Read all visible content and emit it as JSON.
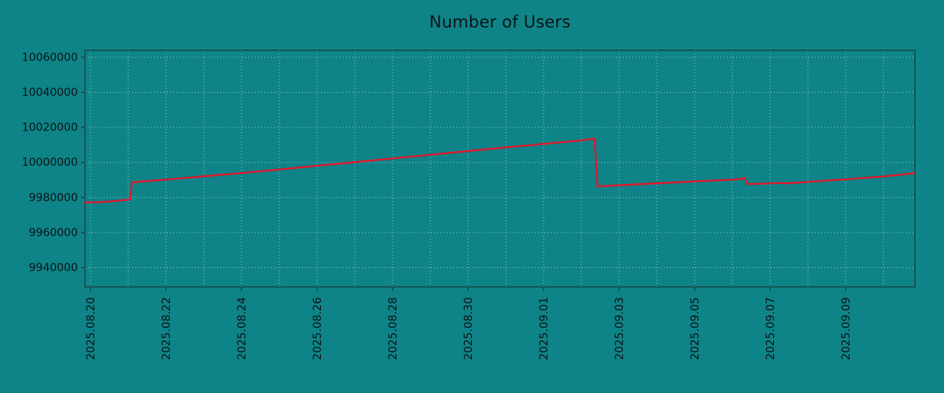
{
  "page": {
    "background": "#0f8488",
    "title_color": "#0a1414",
    "text_color": "#0a1414",
    "frame_color": "#15393b",
    "grid_color": "rgba(255,255,255,0.55)"
  },
  "chart_data": {
    "type": "line",
    "title": "Number of Users",
    "xlabel": "",
    "ylabel": "",
    "legend": "none",
    "grid": "dotted, vertical line per day, horizontal line per 20000 users",
    "ylim": [
      9929000,
      10064000
    ],
    "y_ticks": [
      9940000,
      9960000,
      9980000,
      10000000,
      10020000,
      10040000,
      10060000
    ],
    "x_axis_unit": "days since 2025.08.20",
    "x_range_days": [
      -0.15,
      21.85
    ],
    "x_ticks": [
      {
        "day": 0,
        "label": "2025.08.20"
      },
      {
        "day": 2,
        "label": "2025.08.22"
      },
      {
        "day": 4,
        "label": "2025.08.24"
      },
      {
        "day": 6,
        "label": "2025.08.26"
      },
      {
        "day": 8,
        "label": "2025.08.28"
      },
      {
        "day": 10,
        "label": "2025.08.30"
      },
      {
        "day": 12,
        "label": "2025.09.01"
      },
      {
        "day": 14,
        "label": "2025.09.03"
      },
      {
        "day": 16,
        "label": "2025.09.05"
      },
      {
        "day": 18,
        "label": "2025.09.07"
      },
      {
        "day": 20,
        "label": "2025.09.09"
      }
    ],
    "grid_day_start": 0,
    "grid_day_end": 21,
    "series": [
      {
        "name": "users",
        "color": "#e1172b",
        "line_width": 2.3,
        "points": [
          [
            -0.15,
            9977200
          ],
          [
            0.3,
            9977400
          ],
          [
            0.95,
            9978600
          ],
          [
            1.05,
            9979000
          ],
          [
            1.1,
            9988700
          ],
          [
            1.4,
            9989200
          ],
          [
            2,
            9990200
          ],
          [
            3,
            9992100
          ],
          [
            4,
            9994000
          ],
          [
            5,
            9996000
          ],
          [
            6,
            9998100
          ],
          [
            7,
            10000200
          ],
          [
            8,
            10002300
          ],
          [
            9,
            10004400
          ],
          [
            10,
            10006500
          ],
          [
            11,
            10008600
          ],
          [
            12,
            10010600
          ],
          [
            13,
            10012600
          ],
          [
            13.35,
            10013600
          ],
          [
            13.43,
            9986300
          ],
          [
            14,
            9987000
          ],
          [
            15,
            9988100
          ],
          [
            16,
            9989200
          ],
          [
            17,
            9990200
          ],
          [
            17.25,
            9990700
          ],
          [
            17.33,
            9991100
          ],
          [
            17.4,
            9987700
          ],
          [
            17.9,
            9988000
          ],
          [
            18.3,
            9988400
          ],
          [
            18.45,
            9988100
          ],
          [
            19,
            9988900
          ],
          [
            20,
            9990400
          ],
          [
            21,
            9992000
          ],
          [
            21.83,
            9993900
          ]
        ]
      }
    ]
  }
}
